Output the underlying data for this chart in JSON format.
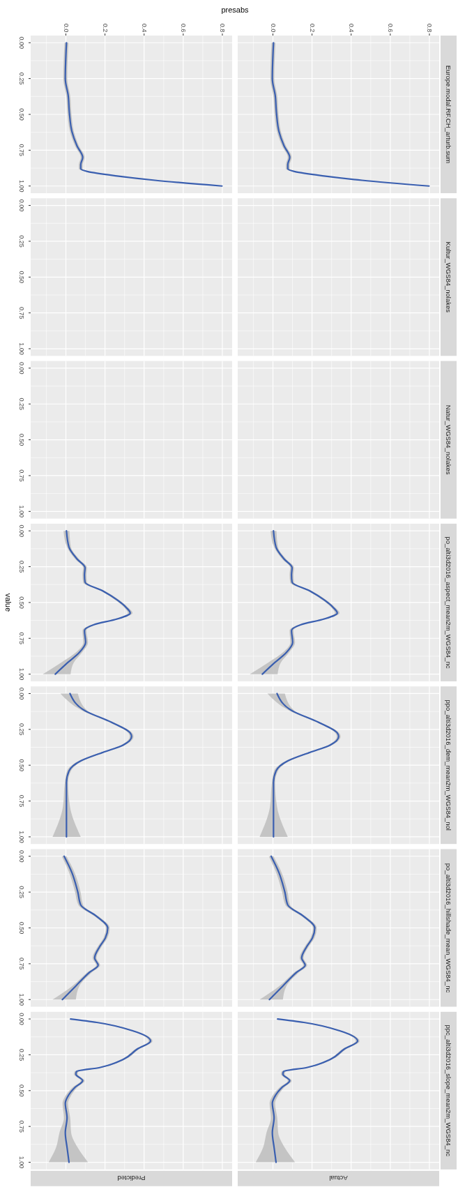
{
  "chart_data": [
    {
      "type": "line",
      "orientation": "horizontal",
      "xlabel": "presabs",
      "grid": true,
      "xlim": [
        -0.18,
        0.85
      ],
      "ylim": [
        1.05,
        -0.05
      ],
      "xticks": [
        {
          "value": 0,
          "label": "0.0"
        },
        {
          "value": 0.2,
          "label": "0.2"
        },
        {
          "value": 0.4,
          "label": "0.4"
        },
        {
          "value": 0.6,
          "label": "0.6"
        },
        {
          "value": 0.8,
          "label": "0.8"
        }
      ],
      "yticks": [
        {
          "value": 0,
          "label": "0.00"
        },
        {
          "value": 0.25,
          "label": "0.25"
        },
        {
          "value": 0.5,
          "label": "0.50"
        },
        {
          "value": 0.75,
          "label": "0.75"
        },
        {
          "value": 1,
          "label": "1.00"
        }
      ],
      "series": [
        {
          "color": "#3a5fb0",
          "x": [
            0,
            0.25,
            0.37,
            0.49,
            0.62,
            0.72,
            0.8,
            0.85,
            0.88,
            0.9,
            0.93,
            0.96,
            1.0
          ],
          "values": [
            0.003,
            -0.003,
            0.012,
            0.018,
            0.031,
            0.057,
            0.086,
            0.076,
            0.076,
            0.113,
            0.262,
            0.455,
            0.798
          ],
          "lower": [
            -0.007,
            -0.013,
            0.002,
            0.008,
            0.021,
            0.047,
            0.076,
            0.066,
            0.066,
            0.103,
            0.252,
            0.445,
            0.79
          ],
          "upper": [
            0.013,
            0.007,
            0.022,
            0.028,
            0.041,
            0.067,
            0.096,
            0.086,
            0.086,
            0.123,
            0.272,
            0.465,
            0.806
          ]
        }
      ]
    },
    {
      "type": "line",
      "orientation": "horizontal",
      "y2label": "Europe.modal.RF.CH_arturb.sum",
      "tick_labels": "x",
      "grid": true,
      "xlim": [
        -0.18,
        0.85
      ],
      "ylim": [
        1.05,
        -0.05
      ],
      "xticks": [
        {
          "value": 0,
          "label": "0.0"
        },
        {
          "value": 0.2,
          "label": "0.2"
        },
        {
          "value": 0.4,
          "label": "0.4"
        },
        {
          "value": 0.6,
          "label": "0.6"
        },
        {
          "value": 0.8,
          "label": "0.8"
        }
      ],
      "yticks": [
        {
          "value": 0,
          "label": null
        },
        {
          "value": 0.25,
          "label": null
        },
        {
          "value": 0.5,
          "label": null
        },
        {
          "value": 0.75,
          "label": null
        },
        {
          "value": 1,
          "label": null
        }
      ],
      "series": [
        {
          "color": "#3a5fb0",
          "x": [
            0,
            0.25,
            0.37,
            0.49,
            0.62,
            0.72,
            0.8,
            0.85,
            0.88,
            0.9,
            0.93,
            0.96,
            1.0
          ],
          "values": [
            0.003,
            -0.003,
            0.012,
            0.018,
            0.031,
            0.057,
            0.086,
            0.076,
            0.076,
            0.113,
            0.262,
            0.455,
            0.798
          ],
          "lower": [
            -0.007,
            -0.013,
            0.002,
            0.008,
            0.021,
            0.047,
            0.076,
            0.066,
            0.066,
            0.103,
            0.252,
            0.445,
            0.79
          ],
          "upper": [
            0.013,
            0.007,
            0.022,
            0.028,
            0.041,
            0.067,
            0.096,
            0.086,
            0.086,
            0.123,
            0.272,
            0.465,
            0.806
          ]
        }
      ]
    },
    {
      "type": "line",
      "orientation": "horizontal",
      "tick_labels": "y",
      "grid": true,
      "xlim": [
        -0.18,
        0.85
      ],
      "ylim": [
        1.05,
        -0.05
      ],
      "xticks": [
        {
          "value": 0,
          "label": null
        },
        {
          "value": 0.2,
          "label": null
        },
        {
          "value": 0.4,
          "label": null
        },
        {
          "value": 0.6,
          "label": null
        },
        {
          "value": 0.8,
          "label": null
        }
      ],
      "yticks": [
        {
          "value": 0,
          "label": "0.00"
        },
        {
          "value": 0.25,
          "label": "0.25"
        },
        {
          "value": 0.5,
          "label": "0.50"
        },
        {
          "value": 0.75,
          "label": "0.75"
        },
        {
          "value": 1,
          "label": "1.00"
        }
      ]
    },
    {
      "type": "other",
      "y2label": "Kultur_WGS84_nolakes"
    },
    {
      "type": "line",
      "orientation": "horizontal",
      "tick_labels": "y",
      "grid": true,
      "xlim": [
        -0.18,
        0.85
      ],
      "ylim": [
        1.05,
        -0.05
      ],
      "xticks": [
        {
          "value": 0,
          "label": null
        },
        {
          "value": 0.2,
          "label": null
        },
        {
          "value": 0.4,
          "label": null
        },
        {
          "value": 0.6,
          "label": null
        },
        {
          "value": 0.8,
          "label": null
        }
      ],
      "yticks": [
        {
          "value": 0,
          "label": "0.00"
        },
        {
          "value": 0.25,
          "label": "0.25"
        },
        {
          "value": 0.5,
          "label": "0.50"
        },
        {
          "value": 0.75,
          "label": "0.75"
        },
        {
          "value": 1,
          "label": "1.00"
        }
      ]
    },
    {
      "type": "other",
      "y2label": "Natur_WGS84_nolakes"
    },
    {
      "type": "line",
      "orientation": "horizontal",
      "ylabel": "value",
      "tick_labels": "y",
      "grid": true,
      "xlim": [
        -0.18,
        0.85
      ],
      "ylim": [
        1.05,
        -0.05
      ],
      "xticks": [
        {
          "value": 0,
          "label": null
        },
        {
          "value": 0.2,
          "label": null
        },
        {
          "value": 0.4,
          "label": null
        },
        {
          "value": 0.6,
          "label": null
        },
        {
          "value": 0.8,
          "label": null
        }
      ],
      "yticks": [
        {
          "value": 0,
          "label": "0.00"
        },
        {
          "value": 0.25,
          "label": "0.25"
        },
        {
          "value": 0.5,
          "label": "0.50"
        },
        {
          "value": 0.75,
          "label": "0.75"
        },
        {
          "value": 1,
          "label": "1.00"
        }
      ],
      "series": [
        {
          "color": "#3a5fb0",
          "x": [
            0,
            0.114,
            0.196,
            0.257,
            0.308,
            0.359,
            0.42,
            0.482,
            0.533,
            0.574,
            0.615,
            0.655,
            0.696,
            0.778,
            0.85,
            0.92,
            1.0
          ],
          "values": [
            0.003,
            0.016,
            0.057,
            0.098,
            0.095,
            0.098,
            0.19,
            0.262,
            0.307,
            0.329,
            0.262,
            0.143,
            0.095,
            0.101,
            0.068,
            0.009,
            -0.054
          ],
          "lower": [
            -0.012,
            0.006,
            0.047,
            0.088,
            0.085,
            0.088,
            0.18,
            0.252,
            0.297,
            0.317,
            0.252,
            0.133,
            0.085,
            0.089,
            0.05,
            -0.025,
            -0.118
          ],
          "upper": [
            0.018,
            0.026,
            0.067,
            0.108,
            0.105,
            0.108,
            0.2,
            0.272,
            0.317,
            0.341,
            0.272,
            0.153,
            0.105,
            0.113,
            0.082,
            0.04,
            0.024
          ]
        }
      ]
    },
    {
      "type": "line",
      "orientation": "horizontal",
      "y2label": "po_alti3d2016_aspect_mean2m_WGS84_nc",
      "tick_labels": false,
      "grid": true,
      "xlim": [
        -0.18,
        0.85
      ],
      "ylim": [
        1.05,
        -0.05
      ],
      "xticks": [
        {
          "value": 0,
          "label": null
        },
        {
          "value": 0.2,
          "label": null
        },
        {
          "value": 0.4,
          "label": null
        },
        {
          "value": 0.6,
          "label": null
        },
        {
          "value": 0.8,
          "label": null
        }
      ],
      "yticks": [
        {
          "value": 0,
          "label": null
        },
        {
          "value": 0.25,
          "label": null
        },
        {
          "value": 0.5,
          "label": null
        },
        {
          "value": 0.75,
          "label": null
        },
        {
          "value": 1,
          "label": null
        }
      ],
      "series": [
        {
          "color": "#3a5fb0",
          "x": [
            0,
            0.114,
            0.196,
            0.257,
            0.308,
            0.359,
            0.42,
            0.482,
            0.533,
            0.574,
            0.615,
            0.655,
            0.696,
            0.778,
            0.85,
            0.92,
            1.0
          ],
          "values": [
            0.003,
            0.016,
            0.057,
            0.098,
            0.095,
            0.098,
            0.19,
            0.262,
            0.307,
            0.329,
            0.262,
            0.143,
            0.095,
            0.101,
            0.068,
            0.009,
            -0.054
          ],
          "lower": [
            -0.012,
            0.006,
            0.047,
            0.088,
            0.085,
            0.088,
            0.18,
            0.252,
            0.297,
            0.317,
            0.252,
            0.133,
            0.085,
            0.089,
            0.05,
            -0.025,
            -0.118
          ],
          "upper": [
            0.018,
            0.026,
            0.067,
            0.108,
            0.105,
            0.108,
            0.2,
            0.272,
            0.317,
            0.341,
            0.272,
            0.153,
            0.105,
            0.113,
            0.082,
            0.04,
            0.024
          ]
        }
      ]
    },
    {
      "type": "line",
      "orientation": "horizontal",
      "tick_labels": "y",
      "grid": true,
      "xlim": [
        -0.18,
        0.85
      ],
      "ylim": [
        1.05,
        -0.05
      ],
      "xticks": [
        {
          "value": 0,
          "label": null
        },
        {
          "value": 0.2,
          "label": null
        },
        {
          "value": 0.4,
          "label": null
        },
        {
          "value": 0.6,
          "label": null
        },
        {
          "value": 0.8,
          "label": null
        }
      ],
      "yticks": [
        {
          "value": 0,
          "label": "0.00"
        },
        {
          "value": 0.25,
          "label": "0.25"
        },
        {
          "value": 0.5,
          "label": "0.50"
        },
        {
          "value": 0.75,
          "label": "0.75"
        },
        {
          "value": 1,
          "label": "1.00"
        }
      ],
      "series": [
        {
          "color": "#3a5fb0",
          "x": [
            0,
            0.12,
            0.2,
            0.275,
            0.3,
            0.36,
            0.41,
            0.47,
            0.54,
            0.62,
            0.79,
            1.0
          ],
          "values": [
            0.021,
            0.098,
            0.232,
            0.329,
            0.336,
            0.292,
            0.19,
            0.076,
            0.016,
            0.003,
            0.003,
            0.003
          ],
          "lower": [
            -0.028,
            0.085,
            0.222,
            0.319,
            0.326,
            0.282,
            0.18,
            0.066,
            0.006,
            -0.005,
            -0.015,
            -0.068
          ],
          "upper": [
            0.061,
            0.11,
            0.242,
            0.339,
            0.346,
            0.302,
            0.2,
            0.086,
            0.026,
            0.011,
            0.021,
            0.076
          ]
        }
      ]
    },
    {
      "type": "line",
      "orientation": "horizontal",
      "y2label": "ppo_alti3d2016_dem_mean2m_WGS84_nol",
      "tick_labels": false,
      "grid": true,
      "xlim": [
        -0.18,
        0.85
      ],
      "ylim": [
        1.05,
        -0.05
      ],
      "xticks": [
        {
          "value": 0,
          "label": null
        },
        {
          "value": 0.2,
          "label": null
        },
        {
          "value": 0.4,
          "label": null
        },
        {
          "value": 0.6,
          "label": null
        },
        {
          "value": 0.8,
          "label": null
        }
      ],
      "yticks": [
        {
          "value": 0,
          "label": null
        },
        {
          "value": 0.25,
          "label": null
        },
        {
          "value": 0.5,
          "label": null
        },
        {
          "value": 0.75,
          "label": null
        },
        {
          "value": 1,
          "label": null
        }
      ],
      "series": [
        {
          "color": "#3a5fb0",
          "x": [
            0,
            0.12,
            0.2,
            0.275,
            0.3,
            0.36,
            0.41,
            0.47,
            0.54,
            0.62,
            0.79,
            1.0
          ],
          "values": [
            0.021,
            0.098,
            0.232,
            0.329,
            0.336,
            0.292,
            0.19,
            0.076,
            0.016,
            0.003,
            0.003,
            0.003
          ],
          "lower": [
            -0.028,
            0.085,
            0.222,
            0.319,
            0.326,
            0.282,
            0.18,
            0.066,
            0.006,
            -0.005,
            -0.015,
            -0.068
          ],
          "upper": [
            0.061,
            0.11,
            0.242,
            0.339,
            0.346,
            0.302,
            0.2,
            0.086,
            0.026,
            0.011,
            0.021,
            0.076
          ]
        }
      ]
    },
    {
      "type": "line",
      "orientation": "horizontal",
      "tick_labels": "y",
      "grid": true,
      "xlim": [
        -0.18,
        0.85
      ],
      "ylim": [
        1.05,
        -0.05
      ],
      "xticks": [
        {
          "value": 0,
          "label": null
        },
        {
          "value": 0.2,
          "label": null
        },
        {
          "value": 0.4,
          "label": null
        },
        {
          "value": 0.6,
          "label": null
        },
        {
          "value": 0.8,
          "label": null
        }
      ],
      "yticks": [
        {
          "value": 0,
          "label": "0.00"
        },
        {
          "value": 0.25,
          "label": "0.25"
        },
        {
          "value": 0.5,
          "label": "0.50"
        },
        {
          "value": 0.75,
          "label": "0.75"
        },
        {
          "value": 1,
          "label": "1.00"
        }
      ],
      "series": [
        {
          "color": "#3a5fb0",
          "x": [
            0,
            0.115,
            0.25,
            0.34,
            0.42,
            0.5,
            0.57,
            0.63,
            0.71,
            0.76,
            0.81,
            0.905,
            1.0
          ],
          "values": [
            -0.009,
            0.031,
            0.061,
            0.076,
            0.158,
            0.214,
            0.202,
            0.173,
            0.147,
            0.165,
            0.121,
            0.051,
            -0.018
          ],
          "lower": [
            -0.021,
            0.017,
            0.047,
            0.064,
            0.148,
            0.204,
            0.192,
            0.163,
            0.137,
            0.155,
            0.109,
            0.033,
            -0.068
          ],
          "upper": [
            0.003,
            0.045,
            0.075,
            0.088,
            0.168,
            0.224,
            0.212,
            0.183,
            0.157,
            0.175,
            0.133,
            0.069,
            0.051
          ]
        }
      ]
    },
    {
      "type": "line",
      "orientation": "horizontal",
      "y2label": "po_alti3d2016_hillshade_mean_WGS84_nc",
      "tick_labels": false,
      "grid": true,
      "xlim": [
        -0.18,
        0.85
      ],
      "ylim": [
        1.05,
        -0.05
      ],
      "xticks": [
        {
          "value": 0,
          "label": null
        },
        {
          "value": 0.2,
          "label": null
        },
        {
          "value": 0.4,
          "label": null
        },
        {
          "value": 0.6,
          "label": null
        },
        {
          "value": 0.8,
          "label": null
        }
      ],
      "yticks": [
        {
          "value": 0,
          "label": null
        },
        {
          "value": 0.25,
          "label": null
        },
        {
          "value": 0.5,
          "label": null
        },
        {
          "value": 0.75,
          "label": null
        },
        {
          "value": 1,
          "label": null
        }
      ],
      "series": [
        {
          "color": "#3a5fb0",
          "x": [
            0,
            0.115,
            0.25,
            0.34,
            0.42,
            0.5,
            0.57,
            0.63,
            0.71,
            0.76,
            0.81,
            0.905,
            1.0
          ],
          "values": [
            -0.009,
            0.031,
            0.061,
            0.076,
            0.158,
            0.214,
            0.202,
            0.173,
            0.147,
            0.165,
            0.121,
            0.051,
            -0.018
          ],
          "lower": [
            -0.021,
            0.017,
            0.047,
            0.064,
            0.148,
            0.204,
            0.192,
            0.163,
            0.137,
            0.155,
            0.109,
            0.033,
            -0.068
          ],
          "upper": [
            0.003,
            0.045,
            0.075,
            0.088,
            0.168,
            0.224,
            0.212,
            0.183,
            0.157,
            0.175,
            0.133,
            0.069,
            0.051
          ]
        }
      ]
    },
    {
      "type": "line",
      "orientation": "horizontal",
      "annotations": [
        "Predicted"
      ],
      "tick_labels": "y",
      "grid": true,
      "xlim": [
        -0.18,
        0.85
      ],
      "ylim": [
        1.05,
        -0.05
      ],
      "xticks": [
        {
          "value": 0,
          "label": null
        },
        {
          "value": 0.2,
          "label": null
        },
        {
          "value": 0.4,
          "label": null
        },
        {
          "value": 0.6,
          "label": null
        },
        {
          "value": 0.8,
          "label": null
        }
      ],
      "yticks": [
        {
          "value": 0,
          "label": "0.00"
        },
        {
          "value": 0.25,
          "label": "0.25"
        },
        {
          "value": 0.5,
          "label": "0.50"
        },
        {
          "value": 0.75,
          "label": "0.75"
        },
        {
          "value": 1,
          "label": "1.00"
        }
      ],
      "series": [
        {
          "color": "#3a5fb0",
          "x": [
            0,
            0.024,
            0.08,
            0.154,
            0.209,
            0.283,
            0.339,
            0.367,
            0.385,
            0.431,
            0.478,
            0.543,
            0.588,
            0.69,
            0.794,
            0.897,
            1.0
          ],
          "values": [
            0.024,
            0.158,
            0.336,
            0.433,
            0.366,
            0.292,
            0.173,
            0.054,
            0.051,
            0.086,
            0.046,
            0.009,
            -0.003,
            0.006,
            -0.003,
            0.006,
            0.016
          ],
          "lower": [
            0.014,
            0.148,
            0.326,
            0.423,
            0.356,
            0.282,
            0.163,
            0.044,
            0.041,
            0.076,
            0.034,
            -0.005,
            -0.017,
            -0.01,
            -0.033,
            -0.05,
            -0.088
          ],
          "upper": [
            0.034,
            0.168,
            0.346,
            0.443,
            0.376,
            0.302,
            0.183,
            0.064,
            0.061,
            0.096,
            0.058,
            0.023,
            0.011,
            0.022,
            0.027,
            0.06,
            0.113
          ]
        }
      ]
    },
    {
      "type": "line",
      "orientation": "horizontal",
      "y2label": "ppc_alti3d2016_slope_mean2m_WGS84_nc",
      "annotations": [
        "Actual"
      ],
      "tick_labels": false,
      "grid": true,
      "xlim": [
        -0.18,
        0.85
      ],
      "ylim": [
        1.05,
        -0.05
      ],
      "xticks": [
        {
          "value": 0,
          "label": null
        },
        {
          "value": 0.2,
          "label": null
        },
        {
          "value": 0.4,
          "label": null
        },
        {
          "value": 0.6,
          "label": null
        },
        {
          "value": 0.8,
          "label": null
        }
      ],
      "yticks": [
        {
          "value": 0,
          "label": null
        },
        {
          "value": 0.25,
          "label": null
        },
        {
          "value": 0.5,
          "label": null
        },
        {
          "value": 0.75,
          "label": null
        },
        {
          "value": 1,
          "label": null
        }
      ],
      "series": [
        {
          "color": "#3a5fb0",
          "x": [
            0,
            0.024,
            0.08,
            0.154,
            0.209,
            0.283,
            0.339,
            0.367,
            0.385,
            0.431,
            0.478,
            0.543,
            0.588,
            0.69,
            0.794,
            0.897,
            1.0
          ],
          "values": [
            0.024,
            0.158,
            0.336,
            0.433,
            0.366,
            0.292,
            0.173,
            0.054,
            0.051,
            0.086,
            0.046,
            0.009,
            -0.003,
            0.006,
            -0.003,
            0.006,
            0.016
          ],
          "lower": [
            0.014,
            0.148,
            0.326,
            0.423,
            0.356,
            0.282,
            0.163,
            0.044,
            0.041,
            0.076,
            0.034,
            -0.005,
            -0.017,
            -0.01,
            -0.033,
            -0.05,
            -0.088
          ],
          "upper": [
            0.034,
            0.168,
            0.346,
            0.443,
            0.376,
            0.302,
            0.183,
            0.064,
            0.061,
            0.096,
            0.058,
            0.023,
            0.011,
            0.022,
            0.027,
            0.06,
            0.113
          ]
        }
      ]
    }
  ]
}
